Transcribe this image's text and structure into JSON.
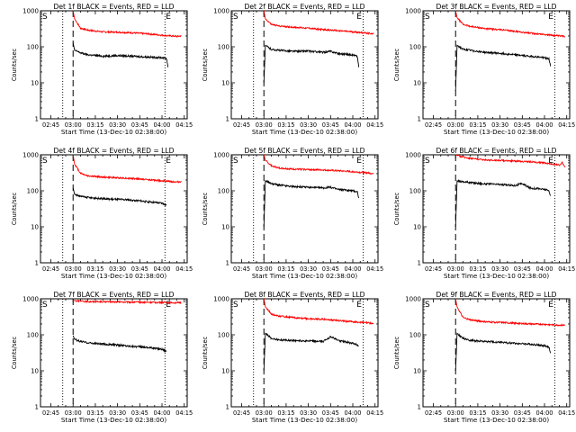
{
  "colors": {
    "events": "#000000",
    "lld": "#ff0000",
    "axes": "#000000",
    "background": "#ffffff"
  },
  "common": {
    "ylabel": "Counts/sec",
    "xlabel": "Start Time (13-Dec-10 02:38:00)",
    "x_tick_labels": [
      "02:45",
      "03:00",
      "03:15",
      "03:30",
      "03:45",
      "04:00",
      "04:15"
    ],
    "y_tick_labels": [
      "1",
      "10",
      "100",
      "1000"
    ],
    "start_marker": "S",
    "end_marker": "E"
  },
  "chart_data": [
    {
      "type": "line",
      "title": "Det 1f BLACK = Events, RED = LLD",
      "xlim": [
        "02:38",
        "04:17"
      ],
      "ylim": [
        1,
        1000
      ],
      "yscale": "log",
      "vlines": {
        "dotted": [
          "02:53",
          "04:02"
        ],
        "dashed": "03:00"
      },
      "series": [
        {
          "name": "Events",
          "color": "#000000",
          "points": [
            [
              "03:00",
              130
            ],
            [
              "03:01",
              80
            ],
            [
              "03:05",
              68
            ],
            [
              "03:10",
              60
            ],
            [
              "03:20",
              55
            ],
            [
              "03:30",
              57
            ],
            [
              "03:40",
              55
            ],
            [
              "03:50",
              52
            ],
            [
              "04:00",
              50
            ],
            [
              "04:03",
              48
            ],
            [
              "04:04",
              28
            ]
          ]
        },
        {
          "name": "LLD",
          "color": "#ff0000",
          "points": [
            [
              "03:00",
              1000
            ],
            [
              "03:01",
              600
            ],
            [
              "03:05",
              330
            ],
            [
              "03:10",
              290
            ],
            [
              "03:20",
              260
            ],
            [
              "03:30",
              255
            ],
            [
              "03:40",
              245
            ],
            [
              "03:50",
              230
            ],
            [
              "04:00",
              210
            ],
            [
              "04:10",
              195
            ],
            [
              "04:13",
              200
            ]
          ]
        }
      ]
    },
    {
      "type": "line",
      "title": "Det 2f BLACK = Events, RED = LLD",
      "xlim": [
        "02:38",
        "04:17"
      ],
      "ylim": [
        1,
        1000
      ],
      "yscale": "log",
      "vlines": {
        "dotted": [
          "02:53",
          "04:07"
        ],
        "dashed": "03:00"
      },
      "series": [
        {
          "name": "Events",
          "color": "#000000",
          "points": [
            [
              "03:00",
              10
            ],
            [
              "03:01",
              110
            ],
            [
              "03:05",
              85
            ],
            [
              "03:10",
              80
            ],
            [
              "03:20",
              75
            ],
            [
              "03:30",
              76
            ],
            [
              "03:40",
              70
            ],
            [
              "03:45",
              75
            ],
            [
              "03:50",
              65
            ],
            [
              "04:00",
              60
            ],
            [
              "04:03",
              55
            ],
            [
              "04:04",
              28
            ]
          ]
        },
        {
          "name": "LLD",
          "color": "#ff0000",
          "points": [
            [
              "03:00",
              1000
            ],
            [
              "03:01",
              600
            ],
            [
              "03:05",
              420
            ],
            [
              "03:10",
              380
            ],
            [
              "03:20",
              350
            ],
            [
              "03:30",
              330
            ],
            [
              "03:40",
              300
            ],
            [
              "03:50",
              280
            ],
            [
              "04:00",
              260
            ],
            [
              "04:10",
              240
            ],
            [
              "04:14",
              230
            ]
          ]
        }
      ]
    },
    {
      "type": "line",
      "title": "Det 3f BLACK = Events, RED = LLD",
      "xlim": [
        "02:38",
        "04:17"
      ],
      "ylim": [
        1,
        1000
      ],
      "yscale": "log",
      "vlines": {
        "dotted": [
          "04:07"
        ],
        "dashed": "03:00"
      },
      "series": [
        {
          "name": "Events",
          "color": "#000000",
          "points": [
            [
              "03:00",
              6
            ],
            [
              "03:01",
              110
            ],
            [
              "03:05",
              85
            ],
            [
              "03:10",
              80
            ],
            [
              "03:20",
              70
            ],
            [
              "03:30",
              66
            ],
            [
              "03:40",
              60
            ],
            [
              "03:50",
              55
            ],
            [
              "04:00",
              50
            ],
            [
              "04:03",
              46
            ],
            [
              "04:04",
              30
            ]
          ]
        },
        {
          "name": "LLD",
          "color": "#ff0000",
          "points": [
            [
              "03:00",
              1000
            ],
            [
              "03:01",
              650
            ],
            [
              "03:05",
              420
            ],
            [
              "03:10",
              370
            ],
            [
              "03:20",
              320
            ],
            [
              "03:30",
              300
            ],
            [
              "03:40",
              270
            ],
            [
              "03:50",
              240
            ],
            [
              "04:00",
              220
            ],
            [
              "04:10",
              200
            ],
            [
              "04:14",
              195
            ]
          ]
        }
      ]
    },
    {
      "type": "line",
      "title": "Det 4f BLACK = Events, RED = LLD",
      "xlim": [
        "02:38",
        "04:17"
      ],
      "ylim": [
        1,
        1000
      ],
      "yscale": "log",
      "vlines": {
        "dotted": [
          "02:53",
          "04:02"
        ],
        "dashed": "03:00"
      },
      "series": [
        {
          "name": "Events",
          "color": "#000000",
          "points": [
            [
              "03:00",
              120
            ],
            [
              "03:01",
              80
            ],
            [
              "03:05",
              70
            ],
            [
              "03:10",
              65
            ],
            [
              "03:20",
              60
            ],
            [
              "03:30",
              58
            ],
            [
              "03:40",
              55
            ],
            [
              "03:50",
              50
            ],
            [
              "04:00",
              45
            ],
            [
              "04:03",
              40
            ]
          ]
        },
        {
          "name": "LLD",
          "color": "#ff0000",
          "points": [
            [
              "03:00",
              1000
            ],
            [
              "03:01",
              550
            ],
            [
              "03:05",
              310
            ],
            [
              "03:10",
              260
            ],
            [
              "03:20",
              240
            ],
            [
              "03:30",
              230
            ],
            [
              "03:40",
              220
            ],
            [
              "03:50",
              205
            ],
            [
              "04:00",
              190
            ],
            [
              "04:10",
              175
            ],
            [
              "04:13",
              180
            ]
          ]
        }
      ]
    },
    {
      "type": "line",
      "title": "Det 5f BLACK = Events, RED = LLD",
      "xlim": [
        "02:38",
        "04:17"
      ],
      "ylim": [
        1,
        1000
      ],
      "yscale": "log",
      "vlines": {
        "dotted": [
          "02:53",
          "04:07"
        ],
        "dashed": "03:00"
      },
      "series": [
        {
          "name": "Events",
          "color": "#000000",
          "points": [
            [
              "03:00",
              10
            ],
            [
              "03:01",
              190
            ],
            [
              "03:05",
              160
            ],
            [
              "03:10",
              145
            ],
            [
              "03:20",
              130
            ],
            [
              "03:30",
              125
            ],
            [
              "03:40",
              120
            ],
            [
              "03:45",
              125
            ],
            [
              "03:50",
              110
            ],
            [
              "04:00",
              100
            ],
            [
              "04:03",
              95
            ],
            [
              "04:04",
              65
            ]
          ]
        },
        {
          "name": "LLD",
          "color": "#ff0000",
          "points": [
            [
              "03:00",
              1000
            ],
            [
              "03:01",
              700
            ],
            [
              "03:05",
              500
            ],
            [
              "03:10",
              430
            ],
            [
              "03:20",
              400
            ],
            [
              "03:30",
              390
            ],
            [
              "03:40",
              380
            ],
            [
              "03:50",
              360
            ],
            [
              "04:00",
              340
            ],
            [
              "04:10",
              315
            ],
            [
              "04:14",
              300
            ]
          ]
        }
      ]
    },
    {
      "type": "line",
      "title": "Det 6f BLACK = Events, RED = LLD",
      "xlim": [
        "02:38",
        "04:17"
      ],
      "ylim": [
        1,
        1000
      ],
      "yscale": "log",
      "vlines": {
        "dotted": [
          "04:07"
        ],
        "dashed": "03:00"
      },
      "series": [
        {
          "name": "Events",
          "color": "#000000",
          "points": [
            [
              "03:00",
              10
            ],
            [
              "03:01",
              190
            ],
            [
              "03:05",
              180
            ],
            [
              "03:10",
              170
            ],
            [
              "03:20",
              155
            ],
            [
              "03:30",
              150
            ],
            [
              "03:40",
              140
            ],
            [
              "03:45",
              160
            ],
            [
              "03:50",
              120
            ],
            [
              "04:00",
              110
            ],
            [
              "04:03",
              100
            ],
            [
              "04:04",
              75
            ]
          ]
        },
        {
          "name": "LLD",
          "color": "#ff0000",
          "points": [
            [
              "03:00",
              1000
            ],
            [
              "03:03",
              900
            ],
            [
              "03:10",
              800
            ],
            [
              "03:20",
              720
            ],
            [
              "03:30",
              700
            ],
            [
              "03:40",
              670
            ],
            [
              "03:50",
              640
            ],
            [
              "04:00",
              600
            ],
            [
              "04:10",
              520
            ],
            [
              "04:12",
              600
            ],
            [
              "04:14",
              430
            ]
          ]
        }
      ]
    },
    {
      "type": "line",
      "title": "Det 7f BLACK = Events, RED = LLD",
      "xlim": [
        "02:38",
        "04:17"
      ],
      "ylim": [
        1,
        1000
      ],
      "yscale": "log",
      "vlines": {
        "dotted": [
          "02:53",
          "04:02"
        ],
        "dashed": "03:00"
      },
      "series": [
        {
          "name": "Events",
          "color": "#000000",
          "points": [
            [
              "03:00",
              95
            ],
            [
              "03:01",
              75
            ],
            [
              "03:05",
              65
            ],
            [
              "03:10",
              60
            ],
            [
              "03:20",
              55
            ],
            [
              "03:30",
              52
            ],
            [
              "03:40",
              48
            ],
            [
              "03:50",
              45
            ],
            [
              "04:00",
              40
            ],
            [
              "04:03",
              35
            ]
          ]
        },
        {
          "name": "LLD",
          "color": "#ff0000",
          "points": [
            [
              "03:00",
              900
            ],
            [
              "03:05",
              860
            ],
            [
              "03:10",
              840
            ],
            [
              "03:20",
              830
            ],
            [
              "03:30",
              820
            ],
            [
              "03:40",
              810
            ],
            [
              "03:50",
              800
            ],
            [
              "04:00",
              790
            ],
            [
              "04:10",
              780
            ],
            [
              "04:13",
              780
            ]
          ]
        }
      ]
    },
    {
      "type": "line",
      "title": "Det 8f BLACK = Events, RED = LLD",
      "xlim": [
        "02:38",
        "04:17"
      ],
      "ylim": [
        1,
        1000
      ],
      "yscale": "log",
      "vlines": {
        "dotted": [
          "02:53",
          "04:07"
        ],
        "dashed": "03:00"
      },
      "series": [
        {
          "name": "Events",
          "color": "#000000",
          "points": [
            [
              "03:00",
              10
            ],
            [
              "03:01",
              110
            ],
            [
              "03:05",
              80
            ],
            [
              "03:10",
              72
            ],
            [
              "03:20",
              70
            ],
            [
              "03:30",
              67
            ],
            [
              "03:40",
              65
            ],
            [
              "03:45",
              90
            ],
            [
              "03:50",
              70
            ],
            [
              "04:00",
              58
            ],
            [
              "04:03",
              52
            ],
            [
              "04:04",
              50
            ]
          ]
        },
        {
          "name": "LLD",
          "color": "#ff0000",
          "points": [
            [
              "03:00",
              1000
            ],
            [
              "03:01",
              600
            ],
            [
              "03:05",
              380
            ],
            [
              "03:10",
              330
            ],
            [
              "03:20",
              300
            ],
            [
              "03:30",
              280
            ],
            [
              "03:40",
              270
            ],
            [
              "03:50",
              250
            ],
            [
              "04:00",
              230
            ],
            [
              "04:10",
              215
            ],
            [
              "04:14",
              205
            ]
          ]
        }
      ]
    },
    {
      "type": "line",
      "title": "Det 9f BLACK = Events, RED = LLD",
      "xlim": [
        "02:38",
        "04:17"
      ],
      "ylim": [
        1,
        1000
      ],
      "yscale": "log",
      "vlines": {
        "dotted": [
          "04:07"
        ],
        "dashed": "03:00"
      },
      "series": [
        {
          "name": "Events",
          "color": "#000000",
          "points": [
            [
              "03:00",
              10
            ],
            [
              "03:01",
              110
            ],
            [
              "03:05",
              80
            ],
            [
              "03:10",
              70
            ],
            [
              "03:20",
              65
            ],
            [
              "03:30",
              62
            ],
            [
              "03:40",
              58
            ],
            [
              "03:50",
              55
            ],
            [
              "04:00",
              50
            ],
            [
              "04:03",
              45
            ],
            [
              "04:04",
              32
            ]
          ]
        },
        {
          "name": "LLD",
          "color": "#ff0000",
          "points": [
            [
              "03:00",
              1000
            ],
            [
              "03:01",
              600
            ],
            [
              "03:05",
              300
            ],
            [
              "03:10",
              260
            ],
            [
              "03:20",
              230
            ],
            [
              "03:30",
              220
            ],
            [
              "03:40",
              210
            ],
            [
              "03:50",
              200
            ],
            [
              "04:00",
              195
            ],
            [
              "04:10",
              185
            ],
            [
              "04:14",
              185
            ]
          ]
        }
      ]
    }
  ]
}
